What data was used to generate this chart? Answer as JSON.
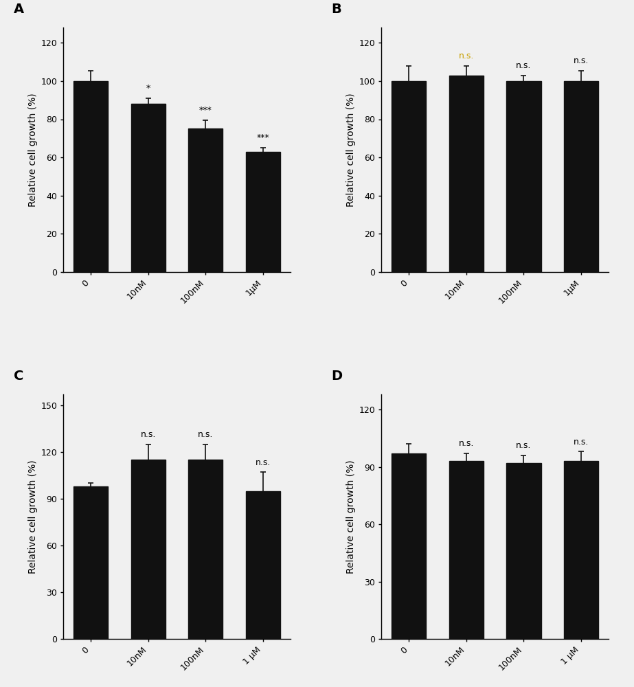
{
  "panels": {
    "A": {
      "values": [
        100,
        88,
        75,
        63
      ],
      "errors": [
        5.5,
        3.0,
        4.5,
        2.0
      ],
      "annotations": [
        "",
        "*",
        "***",
        "***"
      ],
      "ann_color": [
        "black",
        "black",
        "black",
        "black"
      ],
      "categories": [
        "0",
        "10nM",
        "100nM",
        "1μM"
      ],
      "ylabel": "Relative cell growth (%)",
      "ylim": [
        0,
        128
      ],
      "yticks": [
        0,
        20,
        40,
        60,
        80,
        100,
        120
      ],
      "label": "A"
    },
    "B": {
      "values": [
        100,
        103,
        100,
        100
      ],
      "errors": [
        8.0,
        5.0,
        3.0,
        5.5
      ],
      "annotations": [
        "",
        "n.s.",
        "n.s.",
        "n.s."
      ],
      "ann_color": [
        "black",
        "#c8a000",
        "black",
        "black"
      ],
      "categories": [
        "0",
        "10nM",
        "100nM",
        "1μM"
      ],
      "ylabel": "Relative cell growth (%)",
      "ylim": [
        0,
        128
      ],
      "yticks": [
        0,
        20,
        40,
        60,
        80,
        100,
        120
      ],
      "label": "B"
    },
    "C": {
      "values": [
        98,
        115,
        115,
        95
      ],
      "errors": [
        2.0,
        10.0,
        10.0,
        12.0
      ],
      "annotations": [
        "",
        "n.s.",
        "n.s.",
        "n.s."
      ],
      "ann_color": [
        "black",
        "black",
        "black",
        "black"
      ],
      "categories": [
        "0",
        "10nM",
        "100nM",
        "1 μM"
      ],
      "ylabel": "Relative cell growth (%)",
      "ylim": [
        0,
        157
      ],
      "yticks": [
        0,
        30,
        60,
        90,
        120,
        150
      ],
      "label": "C"
    },
    "D": {
      "values": [
        97,
        93,
        92,
        93
      ],
      "errors": [
        5.0,
        4.0,
        4.0,
        5.0
      ],
      "annotations": [
        "",
        "n.s.",
        "n.s.",
        "n.s."
      ],
      "ann_color": [
        "black",
        "black",
        "black",
        "black"
      ],
      "categories": [
        "0",
        "10nM",
        "100nM",
        "1 μM"
      ],
      "ylabel": "Relative cell growth (%)",
      "ylim": [
        0,
        128
      ],
      "yticks": [
        0,
        30,
        60,
        90,
        120
      ],
      "label": "D"
    }
  },
  "bar_color": "#111111",
  "error_color": "#111111",
  "bar_width": 0.6,
  "background_color": "#f0f0f0",
  "label_fontsize": 14,
  "tick_fontsize": 9,
  "ylabel_fontsize": 10,
  "ann_fontsize": 9
}
